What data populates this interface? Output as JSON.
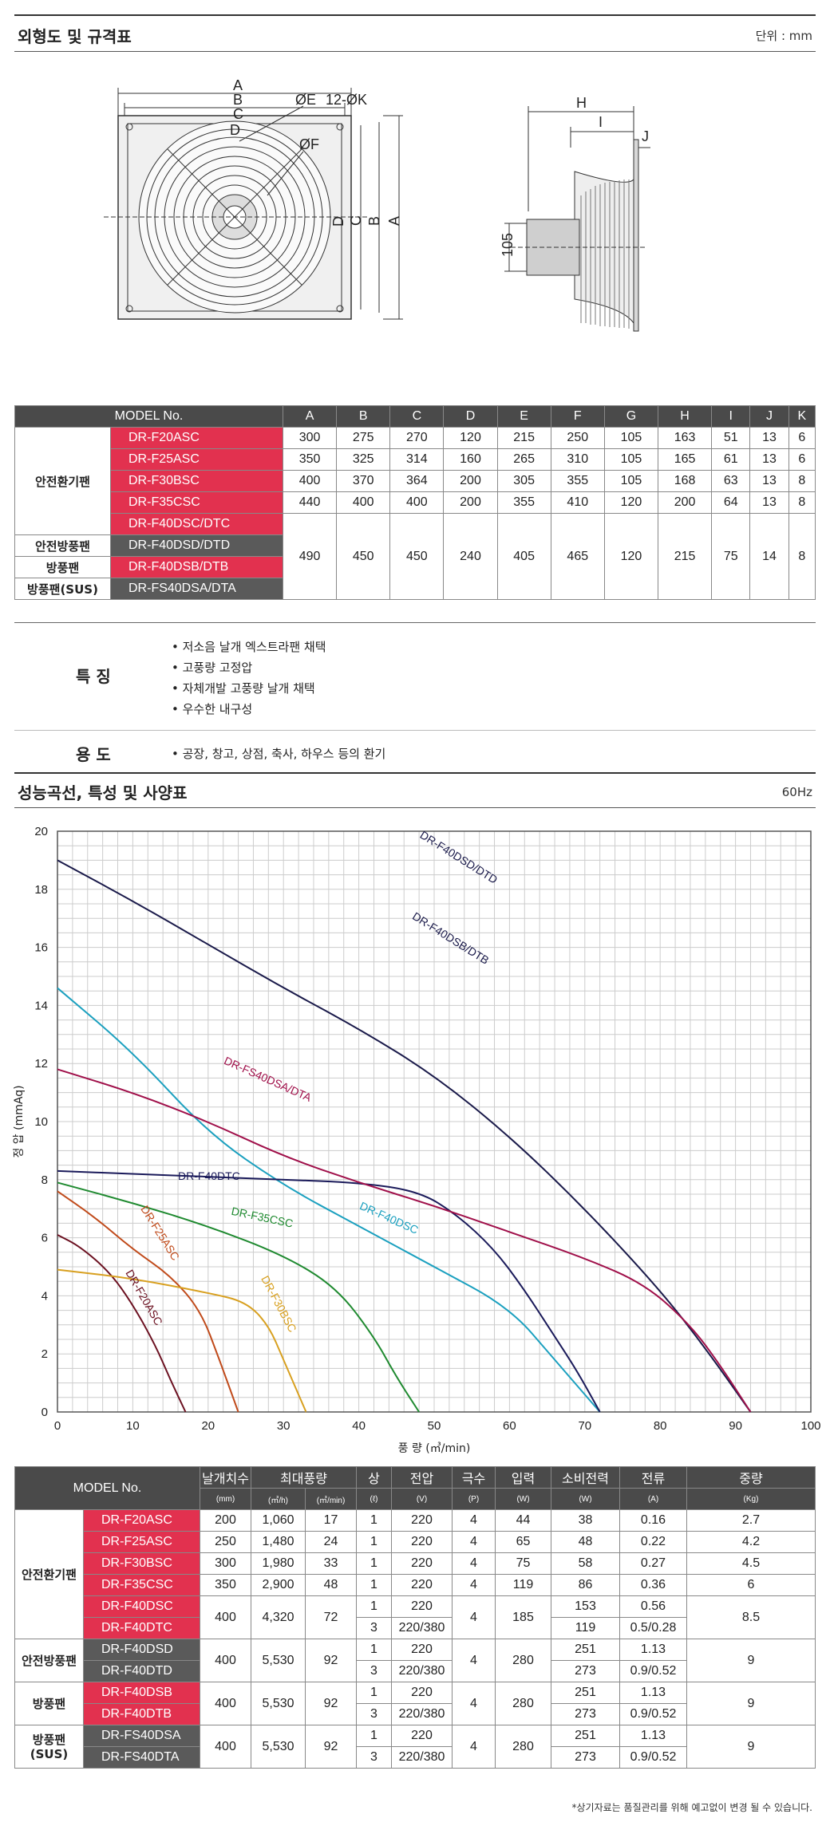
{
  "s1": {
    "title": "외형도 및 규격표",
    "unit": "단위 : mm"
  },
  "dims": {
    "A": "A",
    "B": "B",
    "C": "C",
    "D": "D",
    "E": "ØE",
    "K": "12-ØK",
    "F": "ØF",
    "H": "H",
    "I": "I",
    "J": "J",
    "h105": "105"
  },
  "spec": {
    "headers": [
      "MODEL No.",
      "A",
      "B",
      "C",
      "D",
      "E",
      "F",
      "G",
      "H",
      "I",
      "J",
      "K"
    ],
    "cats": [
      "안전환기팬",
      "안전방풍팬",
      "방풍팬",
      "방풍팬(SUS)"
    ],
    "models": [
      "DR-F20ASC",
      "DR-F25ASC",
      "DR-F30BSC",
      "DR-F35CSC",
      "DR-F40DSC/DTC",
      "DR-F40DSD/DTD",
      "DR-F40DSB/DTB",
      "DR-FS40DSA/DTA"
    ],
    "rows": [
      [
        "300",
        "275",
        "270",
        "120",
        "215",
        "250",
        "105",
        "163",
        "51",
        "13",
        "6"
      ],
      [
        "350",
        "325",
        "314",
        "160",
        "265",
        "310",
        "105",
        "165",
        "61",
        "13",
        "6"
      ],
      [
        "400",
        "370",
        "364",
        "200",
        "305",
        "355",
        "105",
        "168",
        "63",
        "13",
        "8"
      ],
      [
        "440",
        "400",
        "400",
        "200",
        "355",
        "410",
        "120",
        "200",
        "64",
        "13",
        "8"
      ],
      [
        "490",
        "450",
        "450",
        "240",
        "405",
        "465",
        "120",
        "215",
        "75",
        "14",
        "8"
      ]
    ]
  },
  "features": {
    "label": "특 징",
    "items": [
      "• 저소음 날개 엑스트라팬 채택",
      "• 고풍량 고정압",
      "• 자체개발 고풍량 날개 채택",
      "• 우수한 내구성"
    ]
  },
  "usage": {
    "label": "용 도",
    "text": "• 공장, 창고, 상점, 축사, 하우스 등의 환기"
  },
  "s2": {
    "title": "성능곡선, 특성 및 사양표",
    "unit": "60Hz"
  },
  "chart_data": {
    "type": "line",
    "xlabel": "풍 량 (㎥/min)",
    "ylabel": "정 압 (mmAq)",
    "xlim": [
      0,
      100
    ],
    "ylim": [
      0,
      20
    ],
    "xticks": [
      "0",
      "10",
      "20",
      "30",
      "40",
      "50",
      "60",
      "70",
      "80",
      "90",
      "100"
    ],
    "yticks": [
      "0",
      "2",
      "4",
      "6",
      "8",
      "10",
      "12",
      "14",
      "16",
      "18",
      "20"
    ],
    "grid": true,
    "series": [
      {
        "name": "DR-F20ASC",
        "color": "#6b1020",
        "points": [
          [
            0,
            6.1
          ],
          [
            3,
            5.7
          ],
          [
            7,
            4.8
          ],
          [
            10,
            3.7
          ],
          [
            13,
            2.3
          ],
          [
            15,
            1.1
          ],
          [
            17,
            0
          ]
        ]
      },
      {
        "name": "DR-F25ASC",
        "color": "#c04a1a",
        "points": [
          [
            0,
            7.6
          ],
          [
            5,
            6.7
          ],
          [
            10,
            5.6
          ],
          [
            15,
            4.7
          ],
          [
            19,
            3.5
          ],
          [
            21.5,
            1.8
          ],
          [
            24,
            0
          ]
        ]
      },
      {
        "name": "DR-F30BSC",
        "color": "#d8a020",
        "points": [
          [
            0,
            4.9
          ],
          [
            10,
            4.6
          ],
          [
            20,
            4.1
          ],
          [
            25,
            3.8
          ],
          [
            28,
            3.0
          ],
          [
            30,
            1.8
          ],
          [
            33,
            0
          ]
        ]
      },
      {
        "name": "DR-F35CSC",
        "color": "#1f8a30",
        "points": [
          [
            0,
            7.9
          ],
          [
            10,
            7.2
          ],
          [
            20,
            6.4
          ],
          [
            30,
            5.4
          ],
          [
            37,
            4.3
          ],
          [
            42,
            2.6
          ],
          [
            45,
            1.2
          ],
          [
            48,
            0
          ]
        ]
      },
      {
        "name": "DR-F40DSC",
        "color": "#1ba0bf",
        "points": [
          [
            0,
            14.6
          ],
          [
            10,
            12.4
          ],
          [
            20,
            9.6
          ],
          [
            30,
            7.8
          ],
          [
            40,
            6.4
          ],
          [
            50,
            5.0
          ],
          [
            60,
            3.6
          ],
          [
            66,
            1.8
          ],
          [
            72,
            0
          ]
        ]
      },
      {
        "name": "DR-F40DTC",
        "color": "#1a1a5a",
        "points": [
          [
            0,
            8.3
          ],
          [
            10,
            8.2
          ],
          [
            20,
            8.1
          ],
          [
            30,
            8.0
          ],
          [
            40,
            7.9
          ],
          [
            48,
            7.6
          ],
          [
            53,
            6.8
          ],
          [
            58,
            5.6
          ],
          [
            62,
            4.2
          ],
          [
            66,
            2.6
          ],
          [
            69,
            1.4
          ],
          [
            72,
            0
          ]
        ]
      },
      {
        "name": "DR-F40DSD/DTD DR-F40DSB/DTB",
        "color": "#1a1a4a",
        "points": [
          [
            0,
            19
          ],
          [
            10,
            17.6
          ],
          [
            20,
            16.1
          ],
          [
            30,
            14.6
          ],
          [
            40,
            13.2
          ],
          [
            50,
            11.6
          ],
          [
            60,
            9.5
          ],
          [
            70,
            7.0
          ],
          [
            80,
            4.2
          ],
          [
            86,
            2.2
          ],
          [
            92,
            0
          ]
        ]
      },
      {
        "name": "DR-FS40DSA/DTA",
        "color": "#a0104a",
        "points": [
          [
            0,
            11.8
          ],
          [
            10,
            11.0
          ],
          [
            20,
            10.0
          ],
          [
            30,
            8.8
          ],
          [
            40,
            7.9
          ],
          [
            50,
            7.1
          ],
          [
            60,
            6.2
          ],
          [
            70,
            5.3
          ],
          [
            78,
            4.4
          ],
          [
            84,
            3.0
          ],
          [
            88,
            1.6
          ],
          [
            92,
            0
          ]
        ]
      }
    ]
  },
  "labels": {
    "f40dsd": "DR-F40DSD/DTD",
    "f40dsb": "DR-F40DSB/DTB",
    "fs40": "DR-FS40DSA/DTA",
    "dtc": "DR-F40DTC",
    "dsc": "DR-F40DSC",
    "csc": "DR-F35CSC",
    "f25": "DR-F25ASC",
    "f20": "DR-F20ASC",
    "f30": "DR-F30BSC"
  },
  "perf": {
    "h": {
      "model": "MODEL No.",
      "blade": "날개치수",
      "bladeu": "(mm)",
      "flow": "최대풍량",
      "flowu1": "(㎥/h)",
      "flowu2": "(㎥/min)",
      "phase": "상",
      "phaseu": "(ℓ)",
      "volt": "전압",
      "voltu": "(V)",
      "pole": "극수",
      "poleu": "(P)",
      "input": "입력",
      "inputu": "(W)",
      "power": "소비전력",
      "poweru": "(W)",
      "cur": "전류",
      "curu": "(A)",
      "wt": "중량",
      "wtu": "(Kg)"
    },
    "cats": [
      "안전환기팬",
      "안전방풍팬",
      "방풍팬",
      "방풍팬\n(SUS)"
    ],
    "models": [
      "DR-F20ASC",
      "DR-F25ASC",
      "DR-F30BSC",
      "DR-F35CSC",
      "DR-F40DSC",
      "DR-F40DTC",
      "DR-F40DSD",
      "DR-F40DTD",
      "DR-F40DSB",
      "DR-F40DTB",
      "DR-FS40DSA",
      "DR-FS40DTA"
    ],
    "simple": [
      [
        "200",
        "1,060",
        "17",
        "1",
        "220",
        "4",
        "44",
        "38",
        "0.16",
        "2.7"
      ],
      [
        "250",
        "1,480",
        "24",
        "1",
        "220",
        "4",
        "65",
        "48",
        "0.22",
        "4.2"
      ],
      [
        "300",
        "1,980",
        "33",
        "1",
        "220",
        "4",
        "75",
        "58",
        "0.27",
        "4.5"
      ],
      [
        "350",
        "2,900",
        "48",
        "1",
        "220",
        "4",
        "119",
        "86",
        "0.36",
        "6"
      ]
    ],
    "g40": {
      "blade": "400",
      "m3h": "4,320",
      "m3m": "72",
      "ph": [
        "1",
        "3"
      ],
      "v": [
        "220",
        "220/380"
      ],
      "pole": "4",
      "input": "185",
      "pw": [
        "153",
        "119"
      ],
      "cur": [
        "0.56",
        "0.5/0.28"
      ],
      "wt": "8.5"
    },
    "g55": {
      "blade": "400",
      "m3h": "5,530",
      "m3m": "92",
      "ph": [
        "1",
        "3"
      ],
      "v": [
        "220",
        "220/380"
      ],
      "pole": "4",
      "input": "280",
      "pw": [
        "251",
        "273"
      ],
      "cur": [
        "1.13",
        "0.9/0.52"
      ],
      "wt": "9"
    }
  },
  "note": "*상기자료는 품질관리를 위해 예고없이 변경 될 수 있습니다."
}
